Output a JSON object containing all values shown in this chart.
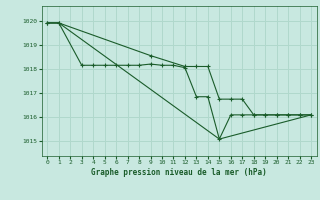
{
  "background_color": "#c8e8e0",
  "grid_color": "#b0d8cc",
  "line_color": "#1a5c2a",
  "title": "Graphe pression niveau de la mer (hPa)",
  "xlim": [
    -0.5,
    23.5
  ],
  "ylim": [
    1014.4,
    1020.6
  ],
  "yticks": [
    1015,
    1016,
    1017,
    1018,
    1019,
    1020
  ],
  "xticks": [
    0,
    1,
    2,
    3,
    4,
    5,
    6,
    7,
    8,
    9,
    10,
    11,
    12,
    13,
    14,
    15,
    16,
    17,
    18,
    19,
    20,
    21,
    22,
    23
  ],
  "series1_x": [
    0,
    1,
    3,
    4,
    5,
    6,
    7,
    8,
    9,
    10,
    11,
    12,
    13,
    14,
    15,
    16,
    17,
    18,
    19,
    20,
    21,
    22,
    23
  ],
  "series1_y": [
    1019.9,
    1019.9,
    1018.15,
    1018.15,
    1018.15,
    1018.15,
    1018.15,
    1018.15,
    1018.2,
    1018.15,
    1018.15,
    1018.05,
    1016.85,
    1016.85,
    1015.1,
    1016.1,
    1016.1,
    1016.1,
    1016.1,
    1016.1,
    1016.1,
    1016.1,
    1016.1
  ],
  "series2_x": [
    0,
    1,
    9,
    12,
    13,
    14,
    15,
    16,
    17,
    18,
    19,
    20,
    21,
    22,
    23
  ],
  "series2_y": [
    1019.9,
    1019.9,
    1018.55,
    1018.1,
    1018.1,
    1018.1,
    1016.75,
    1016.75,
    1016.75,
    1016.1,
    1016.1,
    1016.1,
    1016.1,
    1016.1,
    1016.1
  ],
  "series3_x": [
    0,
    1,
    15,
    23
  ],
  "series3_y": [
    1019.9,
    1019.9,
    1015.1,
    1016.1
  ]
}
